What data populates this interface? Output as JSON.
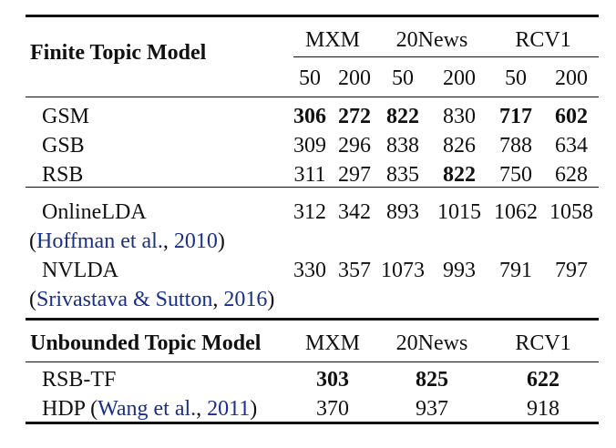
{
  "finite": {
    "header": "Finite Topic Model",
    "datasets": [
      "MXM",
      "20News",
      "RCV1"
    ],
    "sizes": [
      "50",
      "200",
      "50",
      "200",
      "50",
      "200"
    ],
    "rows": [
      {
        "name": "GSM",
        "values": [
          "306",
          "272",
          "822",
          "830",
          "717",
          "602"
        ],
        "bold": [
          true,
          true,
          true,
          false,
          true,
          true
        ]
      },
      {
        "name": "GSB",
        "values": [
          "309",
          "296",
          "838",
          "826",
          "788",
          "634"
        ],
        "bold": [
          false,
          false,
          false,
          false,
          false,
          false
        ]
      },
      {
        "name": "RSB",
        "values": [
          "311",
          "297",
          "835",
          "822",
          "750",
          "628"
        ],
        "bold": [
          false,
          false,
          false,
          true,
          false,
          false
        ]
      },
      {
        "name": "OnlineLDA",
        "cite_open": "(",
        "cite_text": "Hoffman et al.",
        "cite_sep": ", ",
        "cite_year": "2010",
        "cite_close": ")",
        "values": [
          "312",
          "342",
          "893",
          "1015",
          "1062",
          "1058"
        ]
      },
      {
        "name": "NVLDA",
        "cite_open": "(",
        "cite_text": "Srivastava & Sutton",
        "cite_sep": ", ",
        "cite_year": "2016",
        "cite_close": ")",
        "values": [
          "330",
          "357",
          "1073",
          "993",
          "791",
          "797"
        ]
      }
    ]
  },
  "unbounded": {
    "header": "Unbounded Topic Model",
    "datasets": [
      "MXM",
      "20News",
      "RCV1"
    ],
    "rows": [
      {
        "name": "RSB-TF",
        "values": [
          "303",
          "825",
          "622"
        ]
      },
      {
        "name": "HDP",
        "cite_open": "(",
        "cite_text": "Wang et al.",
        "cite_sep": ", ",
        "cite_year": "2011",
        "cite_close": ")",
        "values": [
          "370",
          "937",
          "918"
        ]
      }
    ]
  }
}
